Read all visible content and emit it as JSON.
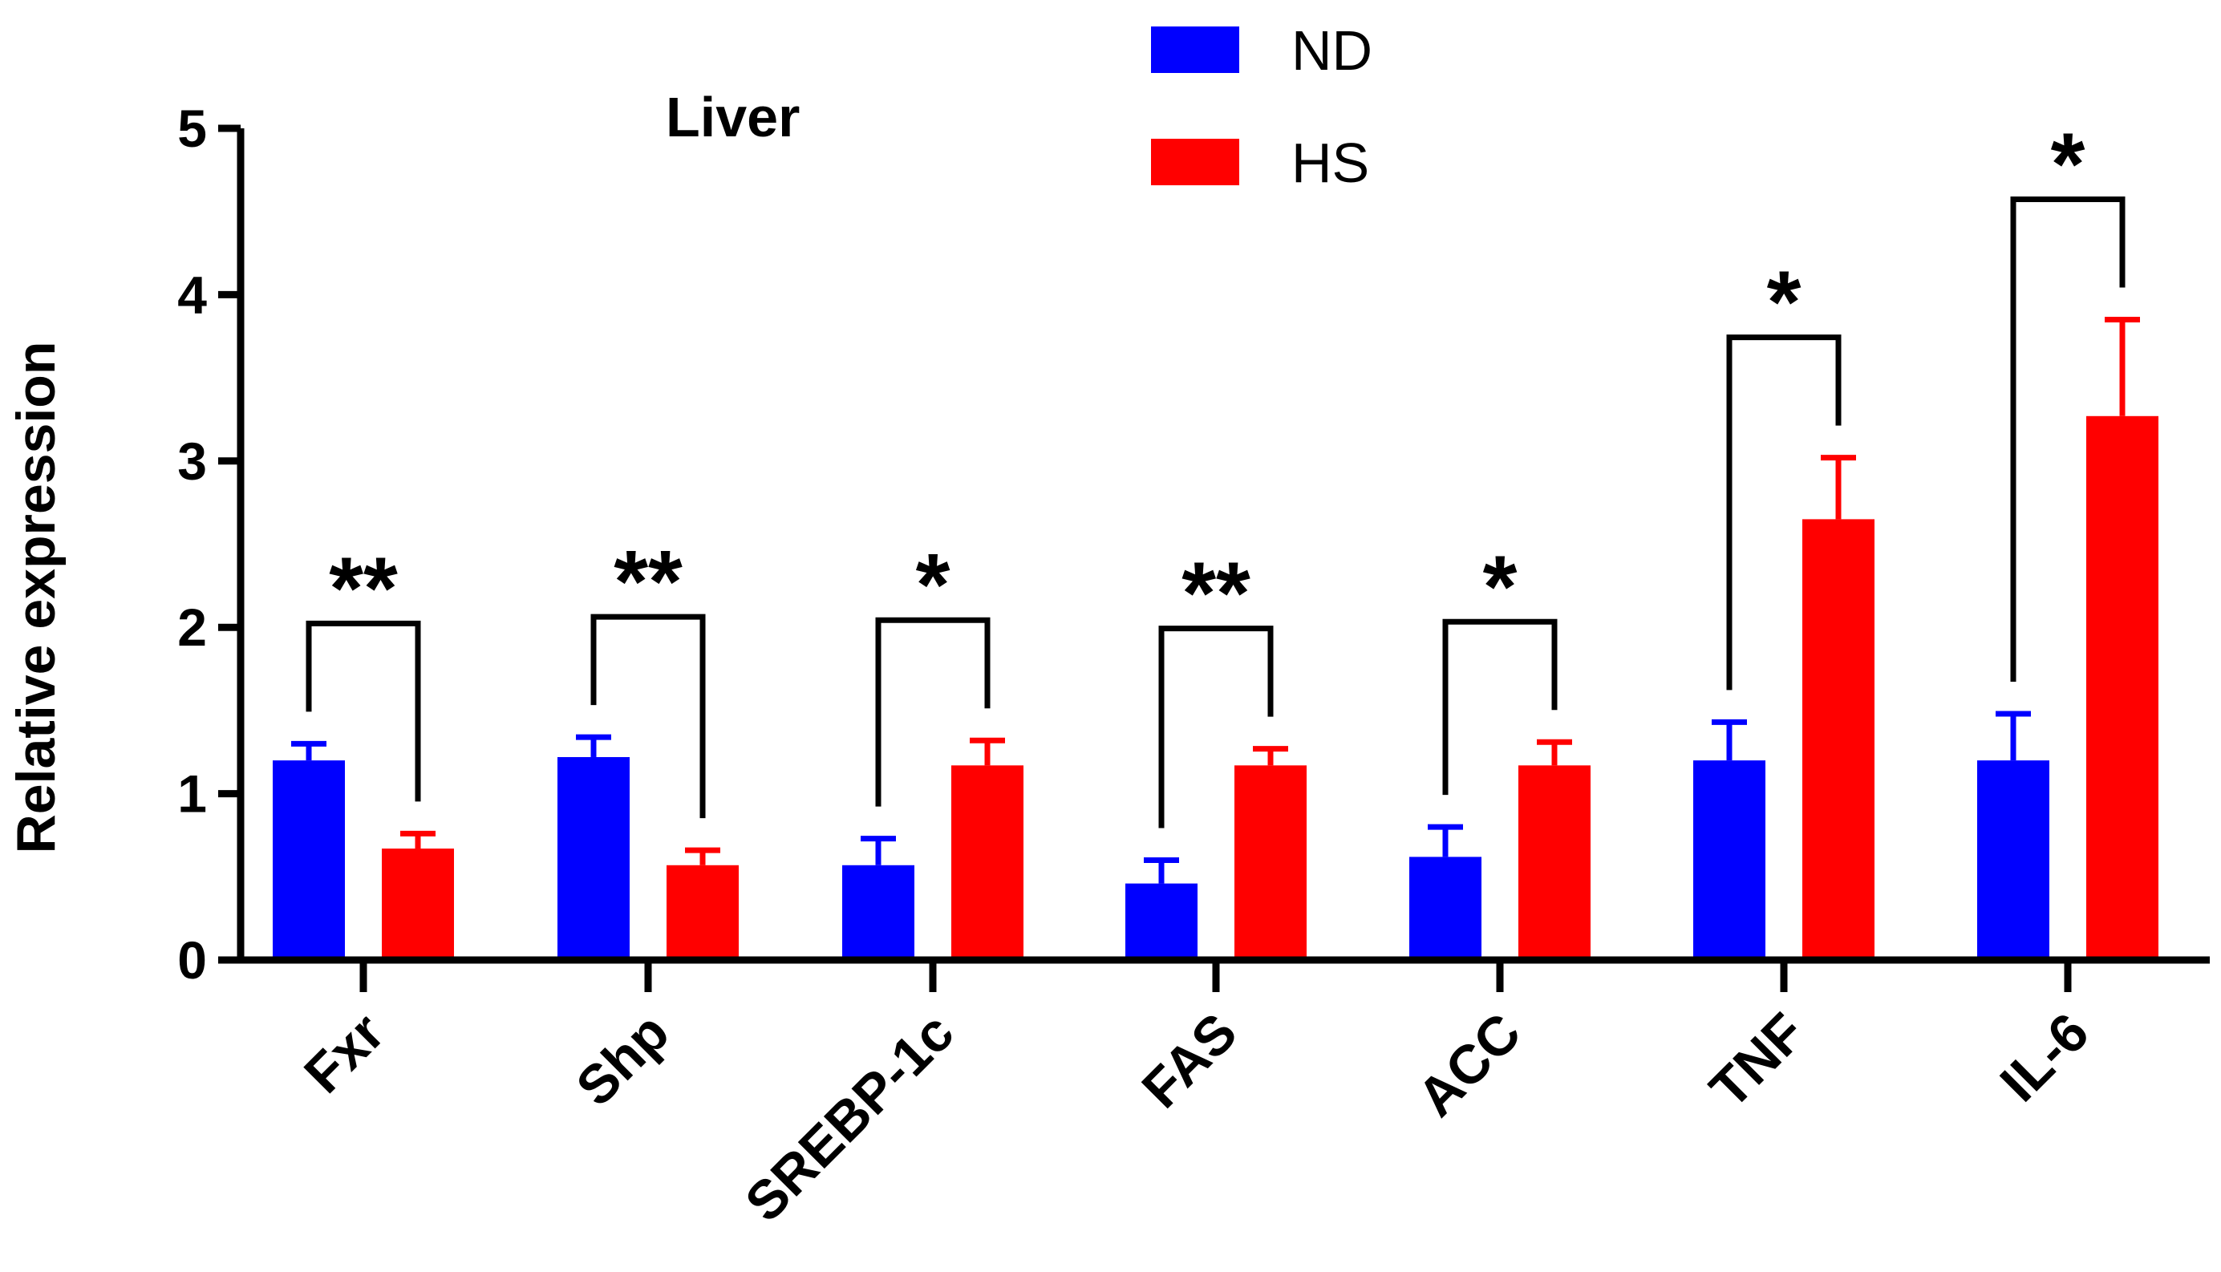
{
  "chart_data": {
    "type": "bar",
    "title": "Liver",
    "xlabel": "",
    "ylabel": "Relative expression",
    "ylim": [
      0,
      5
    ],
    "yticks": [
      "0",
      "1",
      "2",
      "3",
      "4",
      "5"
    ],
    "categories": [
      "Fxr",
      "Shp",
      "SREBP-1c",
      "FAS",
      "ACC",
      "TNF",
      "IL-6"
    ],
    "series": [
      {
        "name": "ND",
        "color": "#0000ff",
        "values": [
          1.2,
          1.22,
          0.57,
          0.46,
          0.62,
          1.2,
          1.2
        ],
        "errors": [
          0.1,
          0.12,
          0.16,
          0.14,
          0.18,
          0.23,
          0.28
        ]
      },
      {
        "name": "HS",
        "color": "#ff0000",
        "values": [
          0.67,
          0.57,
          1.17,
          1.17,
          1.17,
          2.65,
          3.27
        ],
        "errors": [
          0.09,
          0.09,
          0.15,
          0.1,
          0.14,
          0.37,
          0.58
        ]
      }
    ],
    "significance": [
      "**",
      "**",
      "*",
      "**",
      "*",
      "*",
      "*"
    ],
    "legend_position": "top-center",
    "grid": false
  }
}
